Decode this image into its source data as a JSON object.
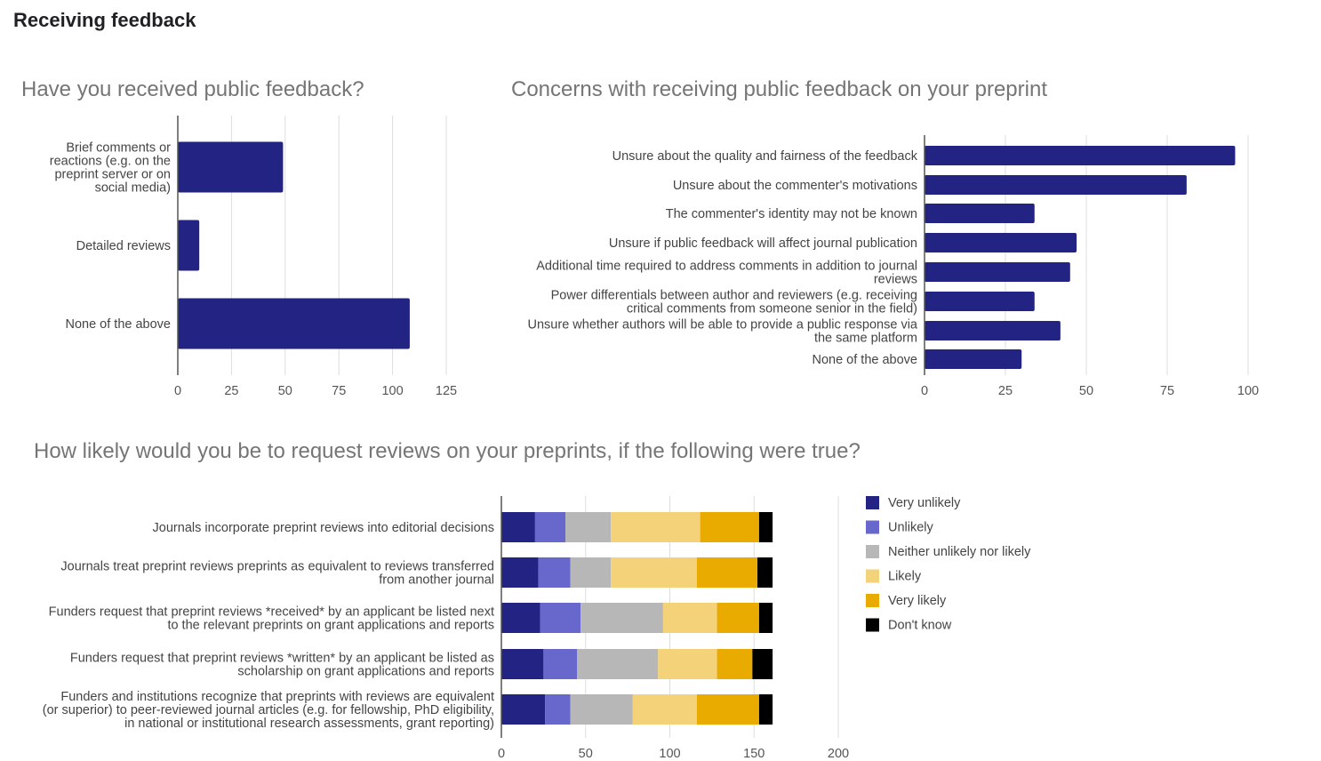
{
  "page_title": "Receiving feedback",
  "colors": {
    "bar": "#232383",
    "grid": "#dddddd",
    "axis": "#555555"
  },
  "chart_data": [
    {
      "type": "bar",
      "orientation": "horizontal",
      "title": "Have you received public feedback?",
      "categories": [
        [
          "Brief comments or",
          "reactions (e.g. on the",
          "preprint server or on",
          "social media)"
        ],
        [
          "Detailed reviews"
        ],
        [
          "None of the above"
        ]
      ],
      "values": [
        49,
        10,
        108
      ],
      "xlim": [
        0,
        125
      ],
      "xticks": [
        0,
        25,
        50,
        75,
        100,
        125
      ],
      "grid": true
    },
    {
      "type": "bar",
      "orientation": "horizontal",
      "title": "Concerns with receiving public feedback on your preprint",
      "categories": [
        [
          "Unsure about the quality and fairness of the feedback"
        ],
        [
          "Unsure about the commenter's motivations"
        ],
        [
          "The commenter's identity may not be known"
        ],
        [
          "Unsure if public feedback will affect journal publication"
        ],
        [
          "Additional time required to address comments in addition to journal",
          "reviews"
        ],
        [
          "Power differentials between author and reviewers (e.g. receiving",
          "critical comments from someone senior in the field)"
        ],
        [
          "Unsure whether authors will be able to provide a public response via",
          "the same platform"
        ],
        [
          "None of the above"
        ]
      ],
      "values": [
        96,
        81,
        34,
        47,
        45,
        34,
        42,
        30
      ],
      "xlim": [
        0,
        100
      ],
      "xticks": [
        0,
        25,
        50,
        75,
        100
      ],
      "grid": true
    },
    {
      "type": "bar",
      "orientation": "horizontal",
      "stacked": true,
      "title": "How likely would you be to request reviews on your preprints, if the following were true?",
      "categories": [
        [
          "Journals incorporate preprint reviews into editorial decisions"
        ],
        [
          "Journals treat preprint reviews preprints as equivalent to reviews transferred",
          "from another journal"
        ],
        [
          "Funders request that preprint reviews *received* by an applicant be listed next",
          "to the relevant preprints on grant applications and reports"
        ],
        [
          "Funders request that preprint reviews *written* by an applicant be listed as",
          "scholarship on grant applications and reports"
        ],
        [
          "Funders and institutions recognize that preprints with reviews are equivalent",
          "(or superior) to peer-reviewed journal articles (e.g. for fellowship, PhD eligibility,",
          "in national or institutional research assessments, grant reporting)"
        ]
      ],
      "series": [
        {
          "name": "Very unlikely",
          "color": "#232383",
          "values": [
            20,
            22,
            23,
            25,
            26
          ]
        },
        {
          "name": "Unlikely",
          "color": "#6767cc",
          "values": [
            18,
            19,
            24,
            20,
            15
          ]
        },
        {
          "name": "Neither unlikely nor likely",
          "color": "#b7b7b7",
          "values": [
            27,
            24,
            49,
            48,
            37
          ]
        },
        {
          "name": "Likely",
          "color": "#f3d27a",
          "values": [
            53,
            51,
            32,
            35,
            38
          ]
        },
        {
          "name": "Very likely",
          "color": "#e9ab00",
          "values": [
            35,
            36,
            25,
            21,
            37
          ]
        },
        {
          "name": "Don't know",
          "color": "#000000",
          "values": [
            8,
            9,
            8,
            12,
            8
          ]
        }
      ],
      "xlim": [
        0,
        200
      ],
      "xticks": [
        0,
        50,
        100,
        150,
        200
      ],
      "grid": true,
      "legend": "right"
    }
  ]
}
